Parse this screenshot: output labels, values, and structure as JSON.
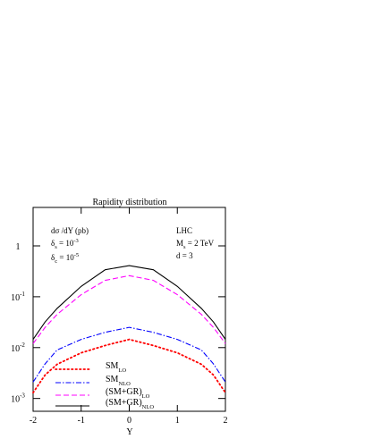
{
  "chart_data": {
    "type": "line",
    "title": "Rapidity distribution",
    "xlabel": "Y",
    "x": [
      -2,
      -1.75,
      -1.5,
      -1,
      -0.5,
      0,
      0.5,
      1,
      1.5,
      1.75,
      2
    ],
    "series": [
      {
        "name": "SM",
        "subscript": "LO",
        "color": "#ff0000",
        "style": "dotted",
        "values": [
          0.0013,
          0.0029,
          0.0047,
          0.0079,
          0.011,
          0.0145,
          0.011,
          0.0079,
          0.0047,
          0.0029,
          0.0013
        ]
      },
      {
        "name": "SM",
        "subscript": "NLO",
        "color": "#0000ff",
        "style": "dashdot",
        "values": [
          0.0021,
          0.0048,
          0.009,
          0.0145,
          0.02,
          0.025,
          0.02,
          0.0145,
          0.009,
          0.0048,
          0.0021
        ]
      },
      {
        "name": "(SM+GR)",
        "subscript": "LO",
        "color": "#ff00ff",
        "style": "dashed",
        "values": [
          0.012,
          0.025,
          0.045,
          0.11,
          0.21,
          0.26,
          0.21,
          0.11,
          0.045,
          0.025,
          0.012
        ]
      },
      {
        "name": "(SM+GR)",
        "subscript": "NLO",
        "color": "#000000",
        "style": "solid",
        "values": [
          0.0145,
          0.032,
          0.059,
          0.16,
          0.34,
          0.41,
          0.34,
          0.16,
          0.059,
          0.032,
          0.0145
        ]
      }
    ],
    "xlim": [
      -2,
      2
    ],
    "xticks": [
      -2,
      -1,
      0,
      1,
      2
    ],
    "ylim": [
      0.00056,
      5.7
    ],
    "log_y": true,
    "yticks": [
      {
        "value": 1,
        "label": "1"
      },
      {
        "value": 0.1,
        "label": "10",
        "exp": "-1"
      },
      {
        "value": 0.01,
        "label": "10",
        "exp": "-2"
      },
      {
        "value": 0.001,
        "label": "10",
        "exp": "-3"
      }
    ],
    "annotations": [
      [
        {
          "text": "dσ /dY (pb)"
        }
      ],
      [
        {
          "text": "δ"
        },
        {
          "text": "s",
          "sub": true
        },
        {
          "text": " = 10"
        },
        {
          "text": "-3",
          "sup": true
        }
      ],
      [
        {
          "text": "δ"
        },
        {
          "text": "c",
          "sub": true
        },
        {
          "text": " = 10"
        },
        {
          "text": "-5",
          "sup": true
        }
      ],
      [
        {
          "text": "LHC"
        }
      ],
      [
        {
          "text": "M"
        },
        {
          "text": "s",
          "sub": true
        },
        {
          "text": " = 2 TeV"
        }
      ],
      [
        {
          "text": "d = 3"
        }
      ]
    ]
  }
}
